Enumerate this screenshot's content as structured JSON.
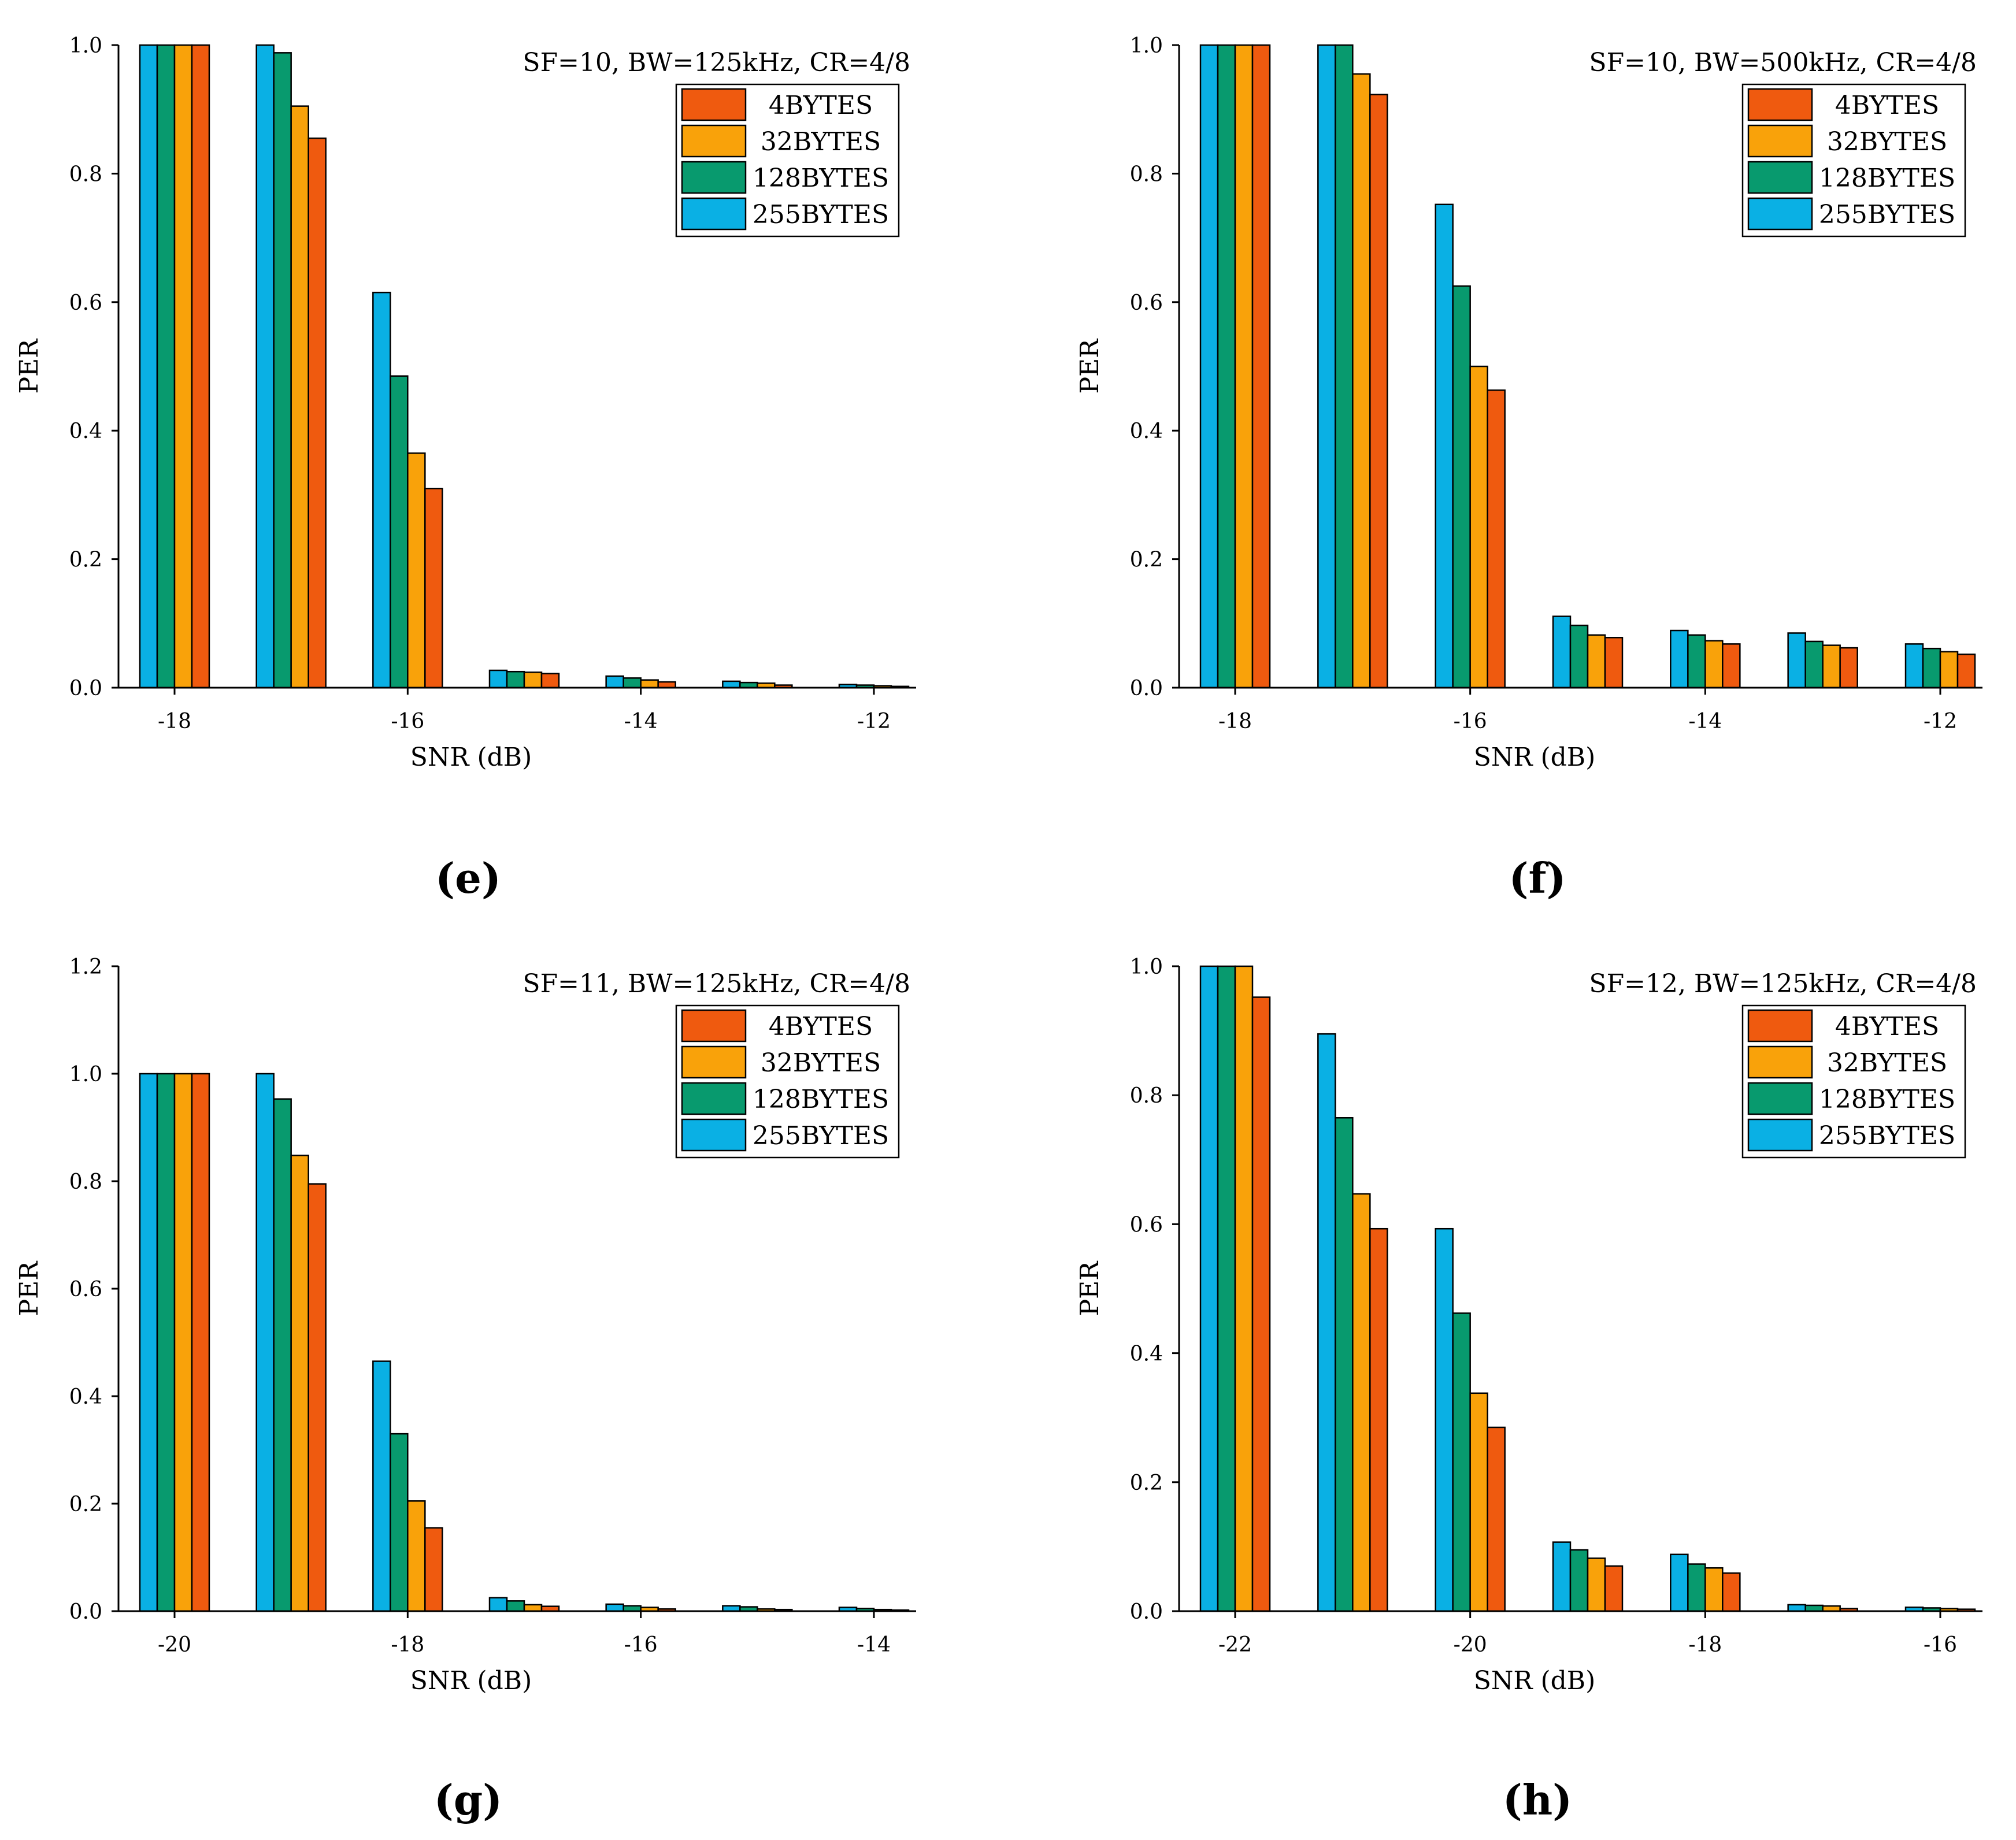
{
  "colors": {
    "4BYTES": "#ef5a0f",
    "32BYTES": "#f9a20a",
    "128BYTES": "#089a6e",
    "255BYTES": "#0ab0e4"
  },
  "chart_data": [
    {
      "panel": "(e)",
      "type": "bar",
      "title": "SF=10, BW=125kHz, CR=4/8",
      "xlabel": "SNR (dB)",
      "ylabel": "PER",
      "ylim": [
        0,
        1.0
      ],
      "yticks": [
        "0.0",
        "0.2",
        "0.4",
        "0.6",
        "0.8",
        "1.0"
      ],
      "categories": [
        "-18",
        "-17",
        "-16",
        "-15",
        "-14",
        "-13",
        "-12"
      ],
      "xtick_labels": [
        "-18",
        "",
        "-16",
        "",
        "-14",
        "",
        "-12"
      ],
      "legend": [
        "4BYTES",
        "32BYTES",
        "128BYTES",
        "255BYTES"
      ],
      "series": [
        {
          "name": "255BYTES",
          "values": [
            1.0,
            1.0,
            0.615,
            0.027,
            0.018,
            0.01,
            0.005
          ]
        },
        {
          "name": "128BYTES",
          "values": [
            1.0,
            0.988,
            0.485,
            0.025,
            0.015,
            0.008,
            0.004
          ]
        },
        {
          "name": "32BYTES",
          "values": [
            1.0,
            0.905,
            0.365,
            0.024,
            0.012,
            0.007,
            0.003
          ]
        },
        {
          "name": "4BYTES",
          "values": [
            1.0,
            0.855,
            0.31,
            0.022,
            0.009,
            0.004,
            0.002
          ]
        }
      ]
    },
    {
      "panel": "(f)",
      "type": "bar",
      "title": "SF=10, BW=500kHz, CR=4/8",
      "xlabel": "SNR (dB)",
      "ylabel": "PER",
      "ylim": [
        0,
        1.0
      ],
      "yticks": [
        "0.0",
        "0.2",
        "0.4",
        "0.6",
        "0.8",
        "1.0"
      ],
      "categories": [
        "-18",
        "-17",
        "-16",
        "-15",
        "-14",
        "-13",
        "-12"
      ],
      "xtick_labels": [
        "-18",
        "",
        "-16",
        "",
        "-14",
        "",
        "-12"
      ],
      "legend": [
        "4BYTES",
        "32BYTES",
        "128BYTES",
        "255BYTES"
      ],
      "series": [
        {
          "name": "255BYTES",
          "values": [
            1.0,
            1.0,
            0.752,
            0.111,
            0.089,
            0.085,
            0.068
          ]
        },
        {
          "name": "128BYTES",
          "values": [
            1.0,
            1.0,
            0.625,
            0.097,
            0.082,
            0.072,
            0.061
          ]
        },
        {
          "name": "32BYTES",
          "values": [
            1.0,
            0.955,
            0.5,
            0.082,
            0.073,
            0.066,
            0.056
          ]
        },
        {
          "name": "4BYTES",
          "values": [
            1.0,
            0.923,
            0.463,
            0.078,
            0.068,
            0.062,
            0.052
          ]
        }
      ]
    },
    {
      "panel": "(g)",
      "type": "bar",
      "title": "SF=11, BW=125kHz, CR=4/8",
      "xlabel": "SNR (dB)",
      "ylabel": "PER",
      "ylim": [
        0,
        1.2
      ],
      "yticks": [
        "0.0",
        "0.2",
        "0.4",
        "0.6",
        "0.8",
        "1.0",
        "1.2"
      ],
      "categories": [
        "-20",
        "-19",
        "-18",
        "-17",
        "-16",
        "-15",
        "-14"
      ],
      "xtick_labels": [
        "-20",
        "",
        "-18",
        "",
        "-16",
        "",
        "-14"
      ],
      "legend": [
        "4BYTES",
        "32BYTES",
        "128BYTES",
        "255BYTES"
      ],
      "series": [
        {
          "name": "255BYTES",
          "values": [
            1.0,
            1.0,
            0.465,
            0.025,
            0.013,
            0.01,
            0.007
          ]
        },
        {
          "name": "128BYTES",
          "values": [
            1.0,
            0.953,
            0.33,
            0.019,
            0.01,
            0.008,
            0.005
          ]
        },
        {
          "name": "32BYTES",
          "values": [
            1.0,
            0.848,
            0.205,
            0.012,
            0.007,
            0.004,
            0.003
          ]
        },
        {
          "name": "4BYTES",
          "values": [
            1.0,
            0.795,
            0.155,
            0.009,
            0.004,
            0.003,
            0.002
          ]
        }
      ]
    },
    {
      "panel": "(h)",
      "type": "bar",
      "title": "SF=12, BW=125kHz, CR=4/8",
      "xlabel": "SNR (dB)",
      "ylabel": "PER",
      "ylim": [
        0,
        1.0
      ],
      "yticks": [
        "0.0",
        "0.2",
        "0.4",
        "0.6",
        "0.8",
        "1.0"
      ],
      "categories": [
        "-22",
        "-21",
        "-20",
        "-19",
        "-18",
        "-17",
        "-16"
      ],
      "xtick_labels": [
        "-22",
        "",
        "-20",
        "",
        "-18",
        "",
        "-16"
      ],
      "legend": [
        "4BYTES",
        "32BYTES",
        "128BYTES",
        "255BYTES"
      ],
      "series": [
        {
          "name": "255BYTES",
          "values": [
            1.0,
            0.895,
            0.593,
            0.107,
            0.088,
            0.01,
            0.006
          ]
        },
        {
          "name": "128BYTES",
          "values": [
            1.0,
            0.765,
            0.462,
            0.095,
            0.073,
            0.009,
            0.005
          ]
        },
        {
          "name": "32BYTES",
          "values": [
            1.0,
            0.647,
            0.338,
            0.082,
            0.067,
            0.008,
            0.004
          ]
        },
        {
          "name": "4BYTES",
          "values": [
            0.952,
            0.593,
            0.285,
            0.07,
            0.059,
            0.004,
            0.003
          ]
        }
      ]
    }
  ]
}
